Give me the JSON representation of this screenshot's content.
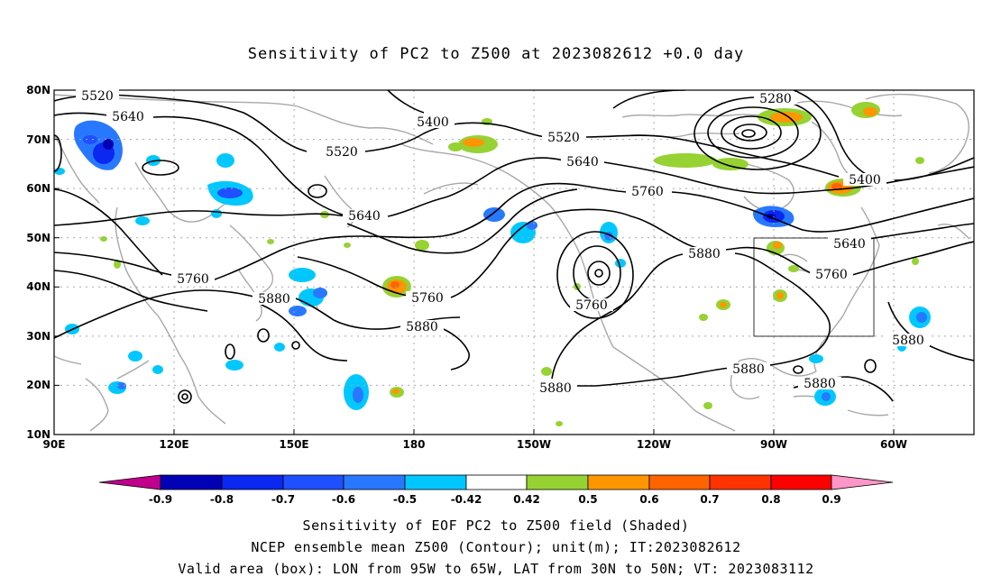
{
  "title": "Sensitivity of PC2 to Z500 at 2023082612 +0.0 day",
  "map": {
    "projection": "lat-lon",
    "lon_range": [
      "90E",
      "45W"
    ],
    "lat_range": [
      "10N",
      "80N"
    ],
    "lat_labels": [
      "80N",
      "70N",
      "60N",
      "50N",
      "40N",
      "30N",
      "20N",
      "10N"
    ],
    "lon_labels": [
      "90E",
      "120E",
      "150E",
      "180",
      "150W",
      "120W",
      "90W",
      "60W"
    ],
    "grid": "dotted",
    "valid_box": {
      "lon": [
        "95W",
        "65W"
      ],
      "lat": [
        "30N",
        "50N"
      ]
    },
    "contour_labels": [
      {
        "text": "5520",
        "id": "c5520a"
      },
      {
        "text": "5640",
        "id": "c5640a"
      },
      {
        "text": "5520",
        "id": "c5520b"
      },
      {
        "text": "5400",
        "id": "c5400a"
      },
      {
        "text": "5520",
        "id": "c5520c"
      },
      {
        "text": "5640",
        "id": "c5640b"
      },
      {
        "text": "5280",
        "id": "c5280"
      },
      {
        "text": "5400",
        "id": "c5400b"
      },
      {
        "text": "5760",
        "id": "c5760a"
      },
      {
        "text": "5640",
        "id": "c5640c"
      },
      {
        "text": "5760",
        "id": "c5760b"
      },
      {
        "text": "5880",
        "id": "c5880a"
      },
      {
        "text": "5760",
        "id": "c5760c"
      },
      {
        "text": "5880",
        "id": "c5880b"
      },
      {
        "text": "5760",
        "id": "c5760d"
      },
      {
        "text": "5880",
        "id": "c5880c"
      },
      {
        "text": "5640",
        "id": "c5640d"
      },
      {
        "text": "5760",
        "id": "c5760e"
      },
      {
        "text": "5880",
        "id": "c5880d"
      },
      {
        "text": "5880",
        "id": "c5880e"
      },
      {
        "text": "5880",
        "id": "c5880f"
      },
      {
        "text": "5880",
        "id": "c5880g"
      }
    ]
  },
  "colorbar": {
    "labels": [
      "-0.9",
      "-0.8",
      "-0.7",
      "-0.6",
      "-0.5",
      "-0.42",
      "0.42",
      "0.5",
      "0.6",
      "0.7",
      "0.8",
      "0.9"
    ],
    "colors": [
      "#c0008c",
      "#0000b4",
      "#0a28f0",
      "#1e50ff",
      "#2878ff",
      "#00c8ff",
      "#ffffff",
      "#96d232",
      "#ff9600",
      "#ff6400",
      "#ff3200",
      "#ff0000",
      "#ff96c8"
    ]
  },
  "captions": {
    "line1": "Sensitivity of EOF PC2 to Z500 field (Shaded)",
    "line2": "NCEP ensemble mean Z500 (Contour); unit(m); IT:2023082612",
    "line3": "Valid area (box): LON from 95W to 65W, LAT from 30N to 50N; VT: 2023083112"
  }
}
